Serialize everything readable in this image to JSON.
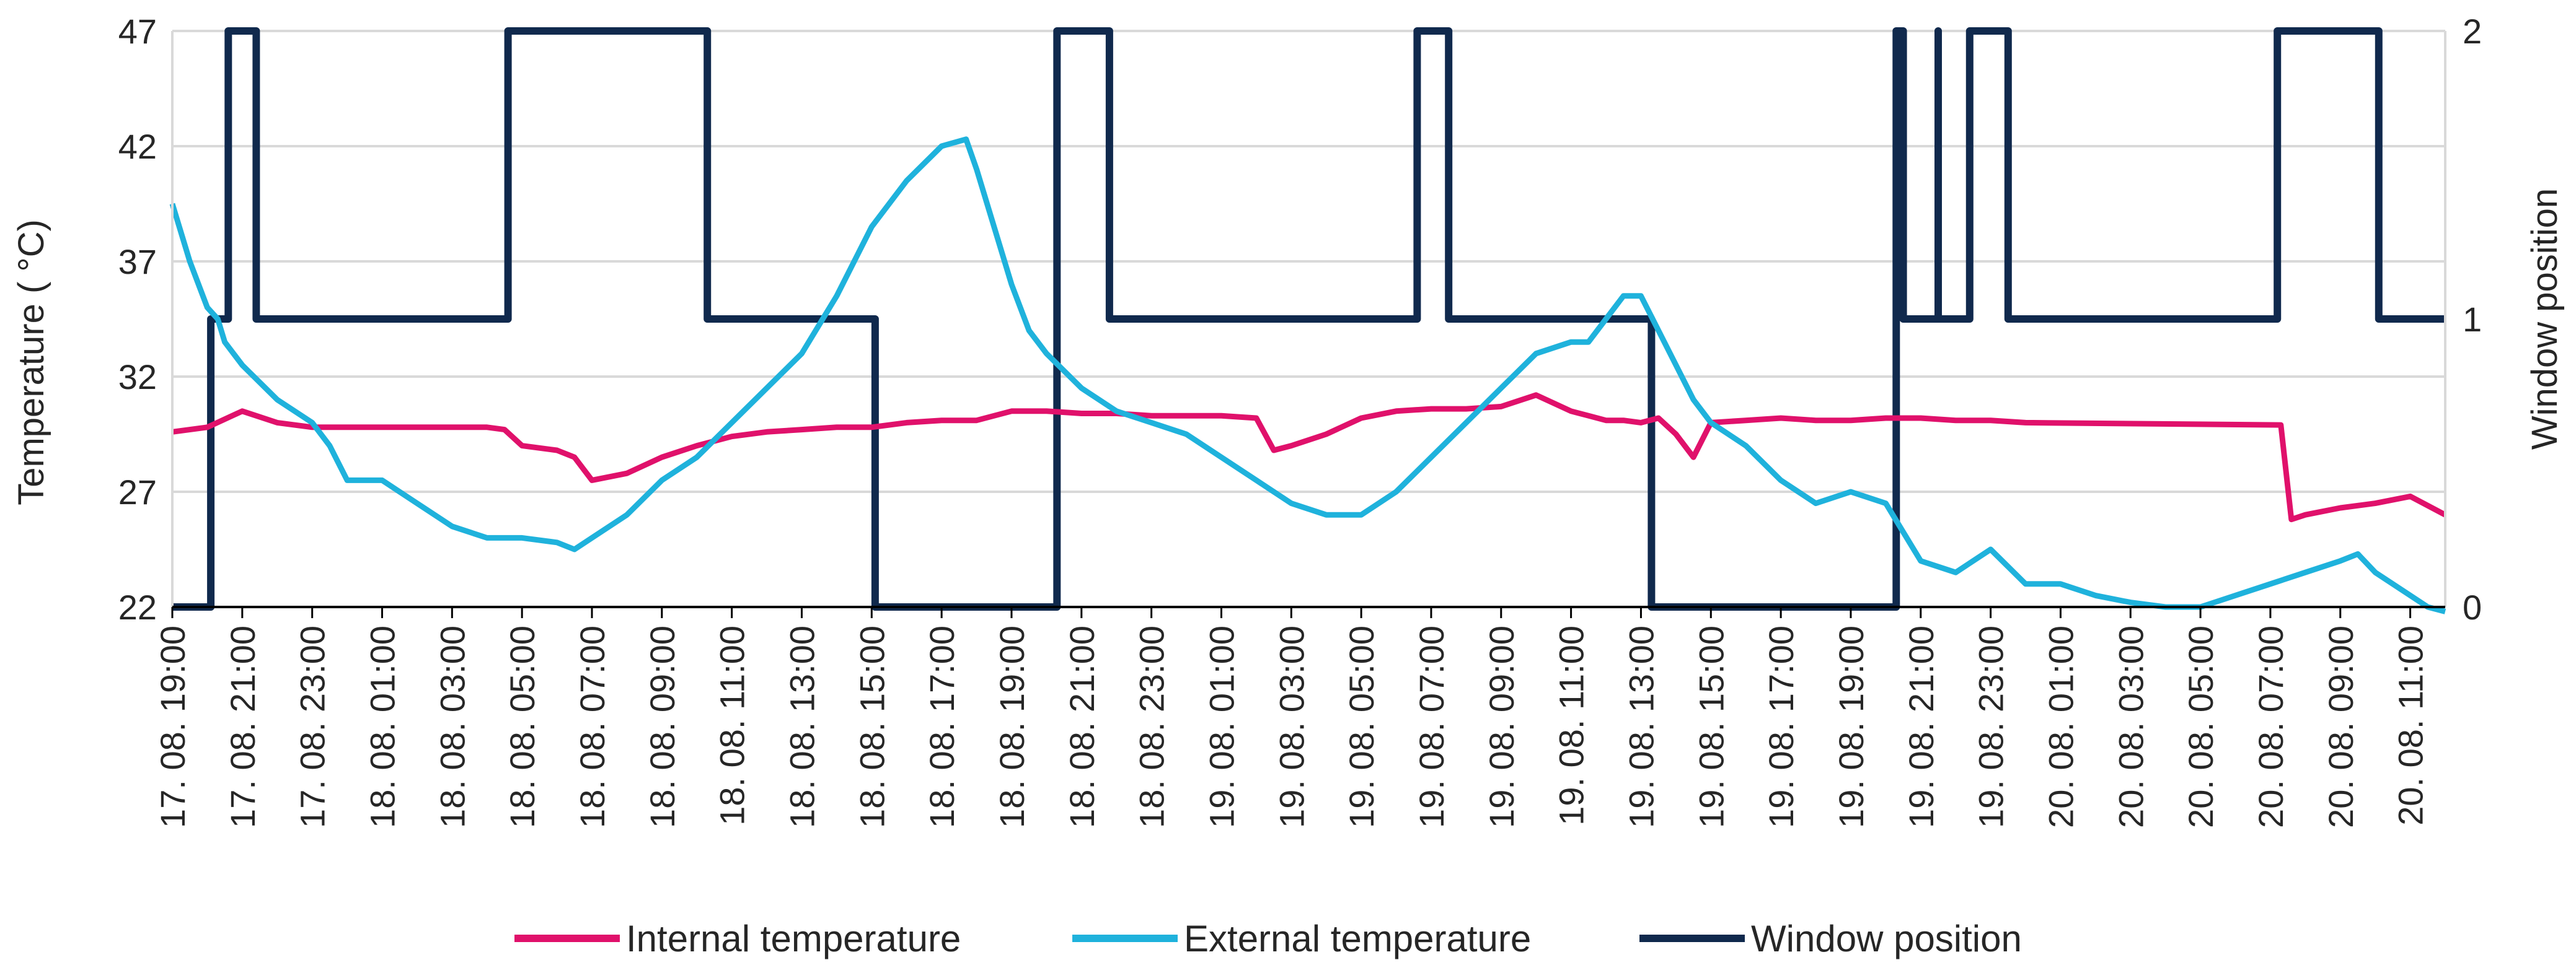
{
  "chart_data": {
    "type": "line",
    "title": "",
    "ylabel": "Temperature ( °C)",
    "y2label": "Window position",
    "ylim": [
      22,
      47
    ],
    "y2lim": [
      0,
      2
    ],
    "yticks": [
      "22",
      "27",
      "32",
      "37",
      "42",
      "47"
    ],
    "y2ticks": [
      "0",
      "1",
      "2"
    ],
    "x_range_hours": [
      0,
      65
    ],
    "xtick_hours": [
      0,
      2,
      4,
      6,
      8,
      10,
      12,
      14,
      16,
      18,
      20,
      22,
      24,
      26,
      28,
      30,
      32,
      34,
      36,
      38,
      40,
      42,
      44,
      46,
      48,
      50,
      52,
      54,
      56,
      58,
      60,
      62,
      64
    ],
    "xticks": [
      "17. 08. 19:00",
      "17. 08. 21:00",
      "17. 08. 23:00",
      "18. 08. 01:00",
      "18. 08. 03:00",
      "18. 08. 05:00",
      "18. 08. 07:00",
      "18. 08. 09:00",
      "18. 08. 11:00",
      "18. 08. 13:00",
      "18. 08. 15:00",
      "18. 08. 17:00",
      "18. 08. 19:00",
      "18. 08. 21:00",
      "18. 08. 23:00",
      "19. 08. 01:00",
      "19. 08. 03:00",
      "19. 08. 05:00",
      "19. 08. 07:00",
      "19. 08. 09:00",
      "19. 08. 11:00",
      "19. 08. 13:00",
      "19. 08. 15:00",
      "19. 08. 17:00",
      "19. 08. 19:00",
      "19. 08. 21:00",
      "19. 08. 23:00",
      "20. 08. 01:00",
      "20. 08. 03:00",
      "20. 08. 05:00",
      "20. 08. 07:00",
      "20. 08. 09:00",
      "20. 08. 11:00"
    ],
    "grid": true,
    "legend_position": "bottom",
    "colors": {
      "internal": "#e0116b",
      "external": "#1fb2dc",
      "window": "#10294d",
      "grid": "#d9d9d9",
      "axis": "#000000"
    },
    "series": [
      {
        "name": "Internal temperature",
        "axis": "left",
        "x": [
          0,
          1,
          2,
          3,
          4,
          5,
          6,
          7,
          8,
          9,
          9.5,
          10,
          11,
          11.5,
          12,
          13,
          14,
          15,
          16,
          17,
          18,
          19,
          20,
          21,
          22,
          23,
          24,
          25,
          26,
          27,
          28,
          29,
          30,
          31,
          31.5,
          32,
          33,
          34,
          35,
          36,
          37,
          38,
          39,
          40,
          40.5,
          41,
          41.5,
          42,
          42.5,
          43,
          43.5,
          44,
          45,
          46,
          47,
          48,
          49,
          50,
          51,
          52,
          53,
          60.3,
          60.6,
          61,
          62,
          63,
          64,
          65
        ],
        "values": [
          29.6,
          29.8,
          30.5,
          30.0,
          29.8,
          29.8,
          29.8,
          29.8,
          29.8,
          29.8,
          29.7,
          29.0,
          28.8,
          28.5,
          27.5,
          27.8,
          28.5,
          29.0,
          29.4,
          29.6,
          29.7,
          29.8,
          29.8,
          30.0,
          30.1,
          30.1,
          30.5,
          30.5,
          30.4,
          30.4,
          30.3,
          30.3,
          30.3,
          30.2,
          28.8,
          29.0,
          29.5,
          30.2,
          30.5,
          30.6,
          30.6,
          30.7,
          31.2,
          30.5,
          30.3,
          30.1,
          30.1,
          30.0,
          30.2,
          29.5,
          28.5,
          30.0,
          30.1,
          30.2,
          30.1,
          30.1,
          30.2,
          30.2,
          30.1,
          30.1,
          30.0,
          29.9,
          25.8,
          26.0,
          26.3,
          26.5,
          26.8,
          26.0
        ]
      },
      {
        "name": "External temperature",
        "axis": "left",
        "x": [
          0,
          0.5,
          1,
          1.3,
          1.5,
          2,
          3,
          4,
          4.5,
          5,
          6,
          7,
          8,
          9,
          10,
          11,
          11.5,
          12,
          13,
          14,
          15,
          16,
          17,
          18,
          19,
          19.5,
          20,
          21,
          22,
          22.7,
          23,
          24,
          24.5,
          25,
          26,
          27,
          28,
          29,
          30,
          31,
          32,
          33,
          34,
          35,
          36,
          37,
          38,
          39,
          40,
          40.5,
          41,
          41.5,
          42,
          42.5,
          43,
          43.5,
          44,
          45,
          46,
          47,
          48,
          49,
          50,
          51,
          52,
          53,
          54,
          55,
          56,
          57,
          58,
          59,
          60,
          61,
          62,
          62.5,
          63,
          64,
          64.5,
          65
        ],
        "values": [
          39.5,
          37.0,
          35.0,
          34.5,
          33.5,
          32.5,
          31.0,
          30.0,
          29.0,
          27.5,
          27.5,
          26.5,
          25.5,
          25.0,
          25.0,
          24.8,
          24.5,
          25.0,
          26.0,
          27.5,
          28.5,
          30.0,
          31.5,
          33.0,
          35.5,
          37.0,
          38.5,
          40.5,
          42.0,
          42.3,
          41.0,
          36.0,
          34.0,
          33.0,
          31.5,
          30.5,
          30.0,
          29.5,
          28.5,
          27.5,
          26.5,
          26.0,
          26.0,
          27.0,
          28.5,
          30.0,
          31.5,
          33.0,
          33.5,
          33.5,
          34.5,
          35.5,
          35.5,
          34.0,
          32.5,
          31.0,
          30.0,
          29.0,
          27.5,
          26.5,
          27.0,
          26.5,
          24.0,
          23.5,
          24.5,
          23.0,
          23.0,
          22.5,
          22.2,
          22.0,
          22.0,
          22.5,
          23.0,
          23.5,
          24.0,
          24.3,
          23.5,
          22.5,
          22.0,
          21.8
        ]
      },
      {
        "name": "Window position",
        "axis": "right",
        "type": "step",
        "x": [
          0,
          1.1,
          1.1,
          1.6,
          1.6,
          2.4,
          2.4,
          9.6,
          9.6,
          15.3,
          15.3,
          20.1,
          20.1,
          25.3,
          25.3,
          26.8,
          26.8,
          35.6,
          35.6,
          36.5,
          36.5,
          42.3,
          42.3,
          49.3,
          49.3,
          49.5,
          49.5,
          50.5,
          50.5,
          50.5,
          50.5,
          51.4,
          51.4,
          52.5,
          52.5,
          60.2,
          60.2,
          63.1,
          63.1,
          65
        ],
        "values": [
          0,
          0,
          1,
          1,
          2,
          2,
          1,
          1,
          2,
          2,
          1,
          1,
          0,
          0,
          2,
          2,
          1,
          1,
          2,
          2,
          1,
          1,
          0,
          0,
          2,
          2,
          1,
          1,
          2,
          2,
          1,
          1,
          2,
          2,
          1,
          1,
          2,
          2,
          1,
          1
        ]
      }
    ]
  }
}
